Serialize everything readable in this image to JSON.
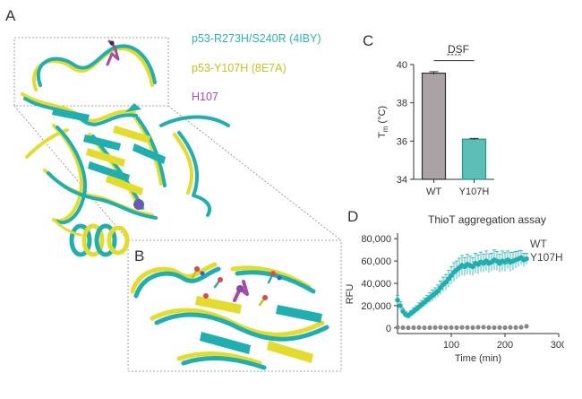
{
  "panels": {
    "a": "A",
    "b": "B",
    "c": "C",
    "d": "D"
  },
  "structure_legend": [
    {
      "label": "p53-R273H/S240R (4IBY)",
      "color": "#2bb3c0"
    },
    {
      "label": "p53-Y107H (8E7A)",
      "color": "#c9c21a"
    },
    {
      "label": "H107",
      "color": "#a64ca6"
    }
  ],
  "colors": {
    "teal": "#1eb0b0",
    "yellow": "#e8e22c",
    "purple": "#9b59b6",
    "wt_gray": "#a9a3a6",
    "y107h_fill": "#5bbfb5",
    "y107h_edge": "#23948a",
    "wt_points": "#888888"
  },
  "chart_data": [
    {
      "type": "bar",
      "title": "DSF",
      "categories": [
        "WT",
        "Y107H"
      ],
      "values": [
        39.55,
        36.1
      ],
      "errors": [
        0.08,
        0.04
      ],
      "ylabel": "T",
      "ylabel_sub": "m",
      "ylabel_unit": " (°C)",
      "ylim": [
        34,
        40
      ],
      "yticks": [
        "34",
        "36",
        "38",
        "40"
      ],
      "significance": "****",
      "grid": false
    },
    {
      "type": "scatter",
      "title": "ThioT aggregation assay",
      "xlabel": "Time (min)",
      "ylabel": "RFU",
      "xlim": [
        0,
        300
      ],
      "ylim": [
        -5000,
        85000
      ],
      "xticks": [
        "100",
        "200",
        "300"
      ],
      "yticks": [
        "0",
        "20,000",
        "40,000",
        "60,000",
        "80,000"
      ],
      "legend": [
        "WT",
        "Y107H"
      ],
      "legend_position": "right",
      "series": [
        {
          "name": "WT",
          "x": [
            0,
            10,
            20,
            30,
            40,
            50,
            60,
            70,
            80,
            90,
            100,
            110,
            120,
            130,
            140,
            150,
            160,
            170,
            180,
            190,
            200,
            210,
            220,
            230,
            240
          ],
          "y": [
            500,
            300,
            200,
            300,
            400,
            200,
            300,
            400,
            500,
            300,
            400,
            300,
            500,
            400,
            300,
            600,
            700,
            400,
            300,
            400,
            300,
            500,
            400,
            600,
            1500
          ]
        },
        {
          "name": "Y107H",
          "x": [
            0,
            5,
            10,
            15,
            20,
            25,
            30,
            35,
            40,
            45,
            50,
            55,
            60,
            65,
            70,
            75,
            80,
            85,
            90,
            95,
            100,
            105,
            110,
            115,
            120,
            125,
            130,
            135,
            140,
            145,
            150,
            155,
            160,
            165,
            170,
            175,
            180,
            185,
            190,
            195,
            200,
            205,
            210,
            215,
            220,
            225,
            230,
            235,
            240
          ],
          "y": [
            25000,
            20000,
            15000,
            12000,
            11000,
            13000,
            15000,
            17000,
            19000,
            21000,
            23000,
            25000,
            27000,
            29000,
            31000,
            33000,
            36000,
            39000,
            41000,
            44000,
            47000,
            50000,
            52000,
            54000,
            56000,
            55000,
            57000,
            56000,
            55000,
            58000,
            57000,
            59000,
            58000,
            60000,
            58000,
            59000,
            61000,
            60000,
            58000,
            60000,
            59000,
            61000,
            59000,
            60000,
            61000,
            62000,
            63000,
            61000,
            62000
          ],
          "err": [
            4000,
            3500,
            3000,
            2500,
            2500,
            2500,
            3000,
            3000,
            3500,
            3500,
            4000,
            4000,
            4500,
            5000,
            5000,
            5500,
            6000,
            6500,
            7000,
            7500,
            8000,
            8500,
            8000,
            8500,
            9000,
            8000,
            9000,
            8500,
            8000,
            9000,
            8500,
            9000,
            8000,
            9000,
            8500,
            8000,
            9000,
            8500,
            8000,
            9000,
            8500,
            8000,
            8500,
            8000,
            7500,
            7000,
            6500,
            6000,
            5000
          ]
        }
      ]
    }
  ]
}
